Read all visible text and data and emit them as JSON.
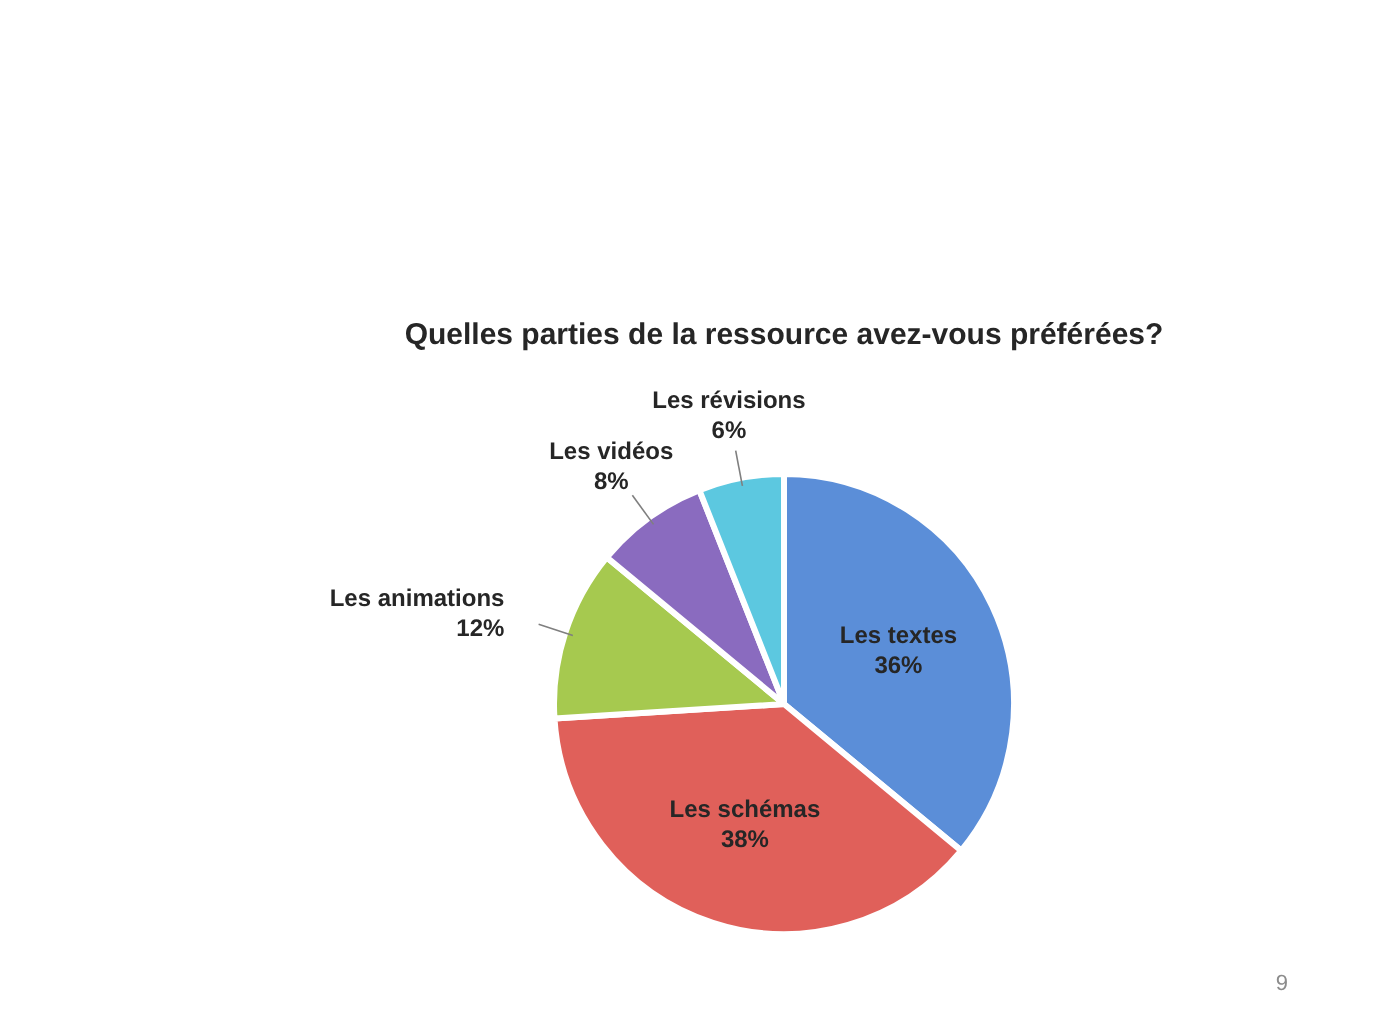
{
  "chart_data": {
    "type": "pie",
    "title": "Quelles parties de la ressource avez-vous préférées?",
    "categories": [
      "Les textes",
      "Les schémas",
      "Les animations",
      "Les vidéos",
      "Les révisions"
    ],
    "values": [
      36,
      38,
      12,
      8,
      6
    ],
    "value_labels": [
      "36%",
      "38%",
      "12%",
      "8%",
      "6%"
    ],
    "colors": [
      "#5b8ed8",
      "#e0605a",
      "#a6c94f",
      "#8a6bbf",
      "#5cc8e0"
    ],
    "annotations": [
      "9"
    ]
  }
}
